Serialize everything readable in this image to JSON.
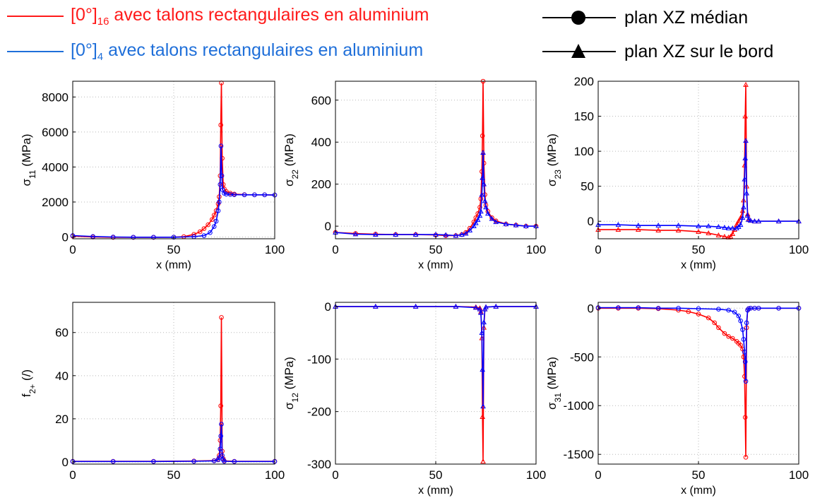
{
  "legend": {
    "red": {
      "prefix": "[0°]",
      "sub": "16",
      "text": " avec talons rectangulaires en aluminium",
      "color": "#ff1a1a"
    },
    "blue": {
      "prefix": "[0°]",
      "sub": "4",
      "text": " avec talons rectangulaires en aluminium",
      "color": "#1f6fd9"
    },
    "circle": {
      "text": "plan XZ médian",
      "marker": "filled-circle"
    },
    "triangle": {
      "text": "plan XZ sur le bord",
      "marker": "filled-triangle"
    }
  },
  "chart_data": [
    {
      "type": "line",
      "ylabel_main": "σ",
      "ylabel_sub": "11",
      "ylabel_unit": " (MPa)",
      "xlabel": "x (mm)",
      "xlim": [
        0,
        100
      ],
      "xticks": [
        0,
        50,
        100
      ],
      "ylim": [
        -100,
        8900
      ],
      "yticks": [
        0,
        2000,
        4000,
        6000,
        8000
      ],
      "grid": true,
      "series": [
        {
          "color": "#ff0000",
          "marker": "circle",
          "x": [
            0,
            10,
            20,
            30,
            40,
            50,
            55,
            60,
            63,
            65,
            67,
            69,
            70,
            71,
            72,
            72.5,
            73,
            73.3,
            73.6,
            74,
            74.5,
            75,
            76,
            78,
            80,
            85,
            90,
            95,
            100
          ],
          "y": [
            50,
            0,
            -20,
            -20,
            -20,
            -10,
            20,
            150,
            300,
            480,
            700,
            1000,
            1250,
            1500,
            1900,
            2300,
            3500,
            6400,
            8800,
            4500,
            3000,
            2750,
            2600,
            2500,
            2450,
            2420,
            2410,
            2410,
            2400
          ]
        },
        {
          "color": "#0000ff",
          "marker": "circle",
          "x": [
            0,
            10,
            20,
            30,
            40,
            50,
            60,
            65,
            68,
            70,
            71,
            72,
            72.5,
            73,
            73.4,
            73.8,
            74.2,
            75,
            76,
            78,
            80,
            85,
            90,
            95,
            100
          ],
          "y": [
            80,
            30,
            0,
            -10,
            -10,
            -10,
            20,
            80,
            250,
            600,
            900,
            1500,
            2000,
            3000,
            5200,
            3500,
            2700,
            2500,
            2450,
            2430,
            2420,
            2410,
            2410,
            2410,
            2400
          ]
        }
      ]
    },
    {
      "type": "line",
      "ylabel_main": "σ",
      "ylabel_sub": "22",
      "ylabel_unit": " (MPa)",
      "xlabel": "x (mm)",
      "xlim": [
        0,
        100
      ],
      "xticks": [
        0,
        50,
        100
      ],
      "ylim": [
        -60,
        690
      ],
      "yticks": [
        0,
        200,
        400,
        600
      ],
      "grid": true,
      "series": [
        {
          "color": "#ff0000",
          "marker": "circle",
          "x": [
            0,
            10,
            20,
            30,
            40,
            50,
            55,
            60,
            63,
            65,
            67,
            69,
            70,
            71,
            72,
            72.5,
            73,
            73.3,
            73.6,
            74,
            74.5,
            75,
            76,
            78,
            80,
            85,
            90,
            95,
            100
          ],
          "y": [
            -30,
            -35,
            -38,
            -40,
            -40,
            -42,
            -45,
            -45,
            -40,
            -30,
            -10,
            20,
            40,
            60,
            90,
            130,
            260,
            430,
            690,
            300,
            150,
            100,
            70,
            40,
            25,
            10,
            5,
            0,
            0
          ]
        },
        {
          "color": "#0000ff",
          "marker": "triangle",
          "x": [
            0,
            10,
            20,
            30,
            40,
            50,
            55,
            60,
            63,
            65,
            67,
            69,
            70,
            71,
            72,
            72.5,
            73,
            73.3,
            73.6,
            74,
            74.5,
            75,
            76,
            78,
            80,
            85,
            90,
            95,
            100
          ],
          "y": [
            -30,
            -38,
            -40,
            -40,
            -40,
            -40,
            -42,
            -45,
            -40,
            -35,
            -20,
            0,
            15,
            30,
            50,
            70,
            150,
            230,
            350,
            200,
            120,
            90,
            60,
            35,
            20,
            10,
            5,
            0,
            0
          ]
        }
      ]
    },
    {
      "type": "line",
      "ylabel_main": "σ",
      "ylabel_sub": "23",
      "ylabel_unit": " (MPa)",
      "xlabel": "x (mm)",
      "xlim": [
        0,
        100
      ],
      "xticks": [
        0,
        50,
        100
      ],
      "ylim": [
        -25,
        200
      ],
      "yticks": [
        0,
        50,
        100,
        150,
        200
      ],
      "grid": true,
      "series": [
        {
          "color": "#ff0000",
          "marker": "triangle",
          "x": [
            0,
            10,
            20,
            30,
            40,
            50,
            55,
            60,
            63,
            65,
            66,
            67,
            68,
            69,
            70,
            71,
            72,
            72.5,
            73,
            73.3,
            73.6,
            74,
            74.5,
            75,
            76,
            78,
            80,
            90,
            100
          ],
          "y": [
            -12,
            -12,
            -12,
            -13,
            -13,
            -15,
            -17,
            -20,
            -22,
            -23,
            -22,
            -18,
            -12,
            -5,
            0,
            5,
            15,
            30,
            80,
            150,
            195,
            50,
            10,
            3,
            1,
            0,
            0,
            0,
            0
          ]
        },
        {
          "color": "#0000ff",
          "marker": "triangle",
          "x": [
            0,
            10,
            20,
            30,
            40,
            50,
            55,
            60,
            63,
            65,
            67,
            69,
            70,
            71,
            72,
            72.5,
            73,
            73.3,
            73.6,
            74,
            74.5,
            75,
            76,
            78,
            80,
            90,
            100
          ],
          "y": [
            -5,
            -5,
            -6,
            -6,
            -6,
            -7,
            -7,
            -8,
            -9,
            -10,
            -10,
            -10,
            -8,
            -5,
            5,
            20,
            60,
            90,
            115,
            40,
            8,
            2,
            1,
            0,
            0,
            0,
            0
          ]
        }
      ]
    },
    {
      "type": "line",
      "ylabel_main": "f",
      "ylabel_sub": "2+",
      "ylabel_unit": " (/)",
      "xlabel": "",
      "xlim": [
        0,
        100
      ],
      "xticks": [
        0,
        50,
        100
      ],
      "ylim": [
        -1,
        74
      ],
      "yticks": [
        0,
        20,
        40,
        60
      ],
      "grid": true,
      "series": [
        {
          "color": "#ff0000",
          "marker": "circle",
          "x": [
            0,
            20,
            40,
            60,
            70,
            72,
            72.5,
            73,
            73.3,
            73.6,
            74,
            74.5,
            75,
            80,
            100
          ],
          "y": [
            0.3,
            0.3,
            0.3,
            0.4,
            0.6,
            1.2,
            3,
            10,
            26,
            67,
            5,
            1.5,
            0.5,
            0.3,
            0.3
          ]
        },
        {
          "color": "#0000ff",
          "marker": "circle",
          "x": [
            0,
            20,
            40,
            60,
            70,
            72,
            72.5,
            73,
            73.3,
            73.6,
            74,
            74.5,
            75,
            80,
            100
          ],
          "y": [
            0.2,
            0.2,
            0.2,
            0.3,
            0.5,
            1,
            2,
            6,
            12,
            17.5,
            3,
            1,
            0.3,
            0.2,
            0.2
          ]
        }
      ]
    },
    {
      "type": "line",
      "ylabel_main": "σ",
      "ylabel_sub": "12",
      "ylabel_unit": " (MPa)",
      "xlabel": "x (mm)",
      "xlim": [
        0,
        100
      ],
      "xticks": [
        0,
        50,
        100
      ],
      "ylim": [
        -300,
        8
      ],
      "yticks": [
        0,
        -100,
        -200,
        -300
      ],
      "grid": true,
      "series": [
        {
          "color": "#ff0000",
          "marker": "triangle",
          "x": [
            0,
            20,
            40,
            60,
            70,
            72,
            72.5,
            73,
            73.3,
            73.6,
            74,
            74.5,
            75,
            80,
            100
          ],
          "y": [
            0,
            0,
            0,
            0,
            -1,
            -3,
            -10,
            -60,
            -210,
            -295,
            -40,
            -5,
            -1,
            0,
            0
          ]
        },
        {
          "color": "#0000ff",
          "marker": "triangle",
          "x": [
            0,
            20,
            40,
            60,
            70,
            72,
            72.5,
            73,
            73.3,
            73.6,
            74,
            74.5,
            75,
            80,
            100
          ],
          "y": [
            0,
            0,
            0,
            0,
            -2,
            -5,
            -12,
            -50,
            -120,
            -190,
            -30,
            -5,
            -1,
            0,
            0
          ]
        }
      ]
    },
    {
      "type": "line",
      "ylabel_main": "σ",
      "ylabel_sub": "31",
      "ylabel_unit": " (MPa)",
      "xlabel": "x (mm)",
      "xlim": [
        0,
        100
      ],
      "xticks": [
        0,
        50,
        100
      ],
      "ylim": [
        -1600,
        60
      ],
      "yticks": [
        0,
        -500,
        -1000,
        -1500
      ],
      "grid": true,
      "series": [
        {
          "color": "#ff0000",
          "marker": "circle",
          "x": [
            0,
            10,
            20,
            30,
            40,
            45,
            50,
            55,
            58,
            60,
            63,
            65,
            67,
            69,
            70,
            71,
            72,
            72.5,
            73,
            73.3,
            73.6,
            74,
            74.5,
            75,
            76,
            78,
            80,
            90,
            100
          ],
          "y": [
            0,
            0,
            0,
            -5,
            -20,
            -35,
            -60,
            -100,
            -150,
            -200,
            -260,
            -290,
            -310,
            -340,
            -360,
            -380,
            -420,
            -500,
            -700,
            -1120,
            -1530,
            -200,
            -20,
            -5,
            0,
            0,
            0,
            0,
            0
          ]
        },
        {
          "color": "#0000ff",
          "marker": "circle",
          "x": [
            0,
            10,
            20,
            30,
            40,
            50,
            60,
            65,
            68,
            70,
            71,
            72,
            72.5,
            73,
            73.3,
            73.6,
            74,
            74.5,
            75,
            76,
            78,
            80,
            90,
            100
          ],
          "y": [
            5,
            5,
            5,
            0,
            0,
            -5,
            -10,
            -20,
            -40,
            -80,
            -130,
            -220,
            -320,
            -450,
            -550,
            -750,
            -150,
            -20,
            -5,
            0,
            0,
            0,
            0,
            0
          ]
        }
      ]
    }
  ]
}
